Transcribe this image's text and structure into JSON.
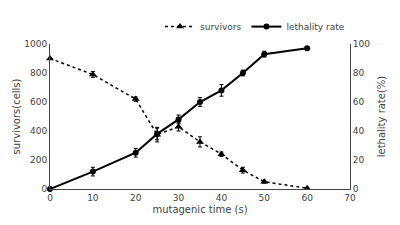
{
  "chart_data": {
    "type": "line",
    "xlabel": "mutagenic time (s)",
    "ylabel": "survivors(cells)",
    "y2label": "lethality rate(%)",
    "x": [
      0,
      10,
      20,
      25,
      30,
      35,
      40,
      45,
      50,
      60
    ],
    "series": [
      {
        "name": "survivors",
        "color": "black",
        "marker": "triangle",
        "line_style": "dotted",
        "values": [
          900,
          790,
          620,
          375,
          430,
          325,
          240,
          130,
          50,
          5
        ],
        "yerr": [
          0,
          20,
          15,
          50,
          30,
          35,
          15,
          20,
          10,
          3
        ]
      },
      {
        "name": "lethality rate",
        "color": "black",
        "marker": "circle",
        "line_style": "solid",
        "axis": "y2",
        "values": [
          0,
          12,
          25,
          38,
          48,
          60,
          68,
          80,
          93,
          97
        ],
        "yerr": [
          0,
          3,
          3,
          4,
          3,
          3,
          4,
          2,
          2,
          1
        ]
      }
    ],
    "xlim": [
      0,
      70
    ],
    "xticks": [
      0,
      10,
      20,
      30,
      40,
      50,
      60,
      70
    ],
    "ylim": [
      0,
      1000
    ],
    "yticks": [
      0,
      200,
      400,
      600,
      800,
      1000
    ],
    "y2lim": [
      0,
      100
    ],
    "y2ticks": [
      0,
      20,
      40,
      60,
      80,
      100
    ],
    "legend": "upper right",
    "grid": false
  }
}
